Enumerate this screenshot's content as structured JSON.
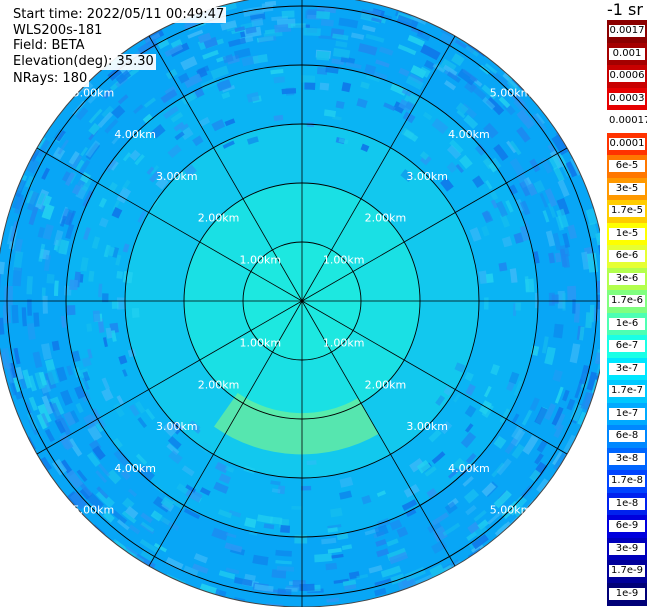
{
  "info": {
    "start_time": "Start time: 2022/05/11 00:49:47",
    "instrument": "WLS200s-181",
    "field": "Field: BETA",
    "elevation": "Elevation(deg): 35.30",
    "nrays": "NRays: 180"
  },
  "unit_label": "-1 sr",
  "chart_data": {
    "type": "heatmap",
    "projection": "polar-ppi",
    "field": "BETA",
    "elevation_deg": 35.3,
    "n_rays": 180,
    "max_range_km": 5.0,
    "range_rings_km": [
      1,
      2,
      3,
      4,
      5
    ],
    "ring_labels": [
      "1.00km",
      "2.00km",
      "3.00km",
      "4.00km",
      "5.00km"
    ],
    "azimuth_spokes_deg": [
      0,
      30,
      60,
      90,
      120,
      150,
      180,
      210,
      240,
      270,
      300,
      330
    ],
    "colorbar": {
      "labels": [
        "0.0017",
        "0.001",
        "0.0006",
        "0.0003",
        "0.00017",
        "0.0001",
        "6e-5",
        "3e-5",
        "1.7e-5",
        "1e-5",
        "6e-6",
        "3e-6",
        "1.7e-6",
        "1e-6",
        "6e-7",
        "3e-7",
        "1.7e-7",
        "1e-7",
        "6e-8",
        "3e-8",
        "1.7e-8",
        "1e-8",
        "6e-9",
        "3e-9",
        "1.7e-9",
        "1e-9"
      ],
      "colors": [
        "#8b0000",
        "#a40000",
        "#c80000",
        "#e60000",
        "#ffffff",
        "#ff3300",
        "#ff7700",
        "#ff9900",
        "#ffcc00",
        "#ffff00",
        "#e6ff33",
        "#b3ff4d",
        "#80ff80",
        "#4dffb3",
        "#1affe6",
        "#00e6ff",
        "#00c8ff",
        "#00aaff",
        "#0088ff",
        "#0066ff",
        "#0044ff",
        "#0022ee",
        "#0000dd",
        "#0000bb",
        "#000099",
        "#000077"
      ]
    },
    "field_summary": [
      {
        "range_km": [
          0.0,
          1.0
        ],
        "value": "1e-6",
        "color": "#1de8e0"
      },
      {
        "range_km": [
          1.0,
          2.0
        ],
        "value": "6e-7",
        "color": "#1ae0e4"
      },
      {
        "range_km": [
          2.0,
          3.0
        ],
        "value": "3e-7",
        "color": "#12c8ee"
      },
      {
        "range_km": [
          3.0,
          4.0
        ],
        "value": "1.7e-7",
        "color": "#0ab4f4"
      },
      {
        "range_km": [
          4.0,
          5.2
        ],
        "value": "1e-7",
        "color": "#08a6f6"
      }
    ],
    "enhanced_region": {
      "azimuth_deg": [
        150,
        215
      ],
      "range_km": [
        1.9,
        2.6
      ],
      "value": "1.7e-6",
      "color": "#6ef09a"
    }
  }
}
